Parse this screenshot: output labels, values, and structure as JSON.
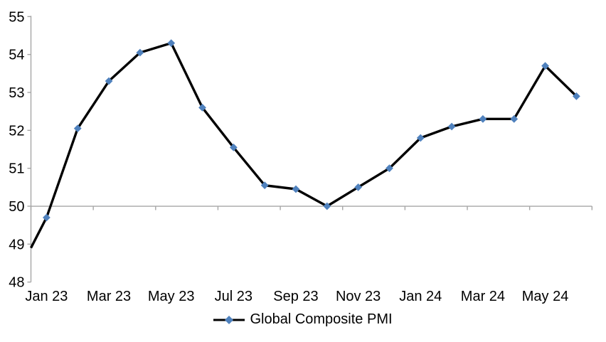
{
  "chart_data": {
    "type": "line",
    "title": "",
    "xlabel": "",
    "ylabel": "",
    "categories": [
      "Jan 23",
      "Feb 23",
      "Mar 23",
      "Apr 23",
      "May 23",
      "Jun 23",
      "Jul 23",
      "Aug 23",
      "Sep 23",
      "Oct 23",
      "Nov 23",
      "Dec 23",
      "Jan 24",
      "Feb 24",
      "Mar 24",
      "Apr 24",
      "May 24",
      "Jun 24"
    ],
    "series": [
      {
        "name": "Global Composite PMI",
        "values": [
          49.7,
          52.05,
          53.3,
          54.05,
          54.3,
          52.6,
          51.55,
          50.55,
          50.45,
          50.0,
          50.5,
          51.0,
          51.8,
          52.1,
          52.3,
          52.3,
          53.7,
          52.9
        ],
        "line_color": "#000000",
        "marker": "diamond",
        "marker_color": "#4F81BD"
      }
    ],
    "edge_start_value": 48.9,
    "ylim": [
      48,
      55
    ],
    "y_tick_labels": [
      "48",
      "49",
      "50",
      "51",
      "52",
      "53",
      "54",
      "55"
    ],
    "x_tick_labels": [
      "Jan 23",
      "Mar 23",
      "May 23",
      "Jul 23",
      "Sep 23",
      "Nov 23",
      "Jan 24",
      "Mar 24",
      "May 24"
    ],
    "x_label_every": 2,
    "reference_axis_value": 50,
    "axis_color": "#A6A6A6",
    "grid": "off",
    "legend": {
      "label": "Global Composite PMI",
      "position": "bottom"
    }
  }
}
